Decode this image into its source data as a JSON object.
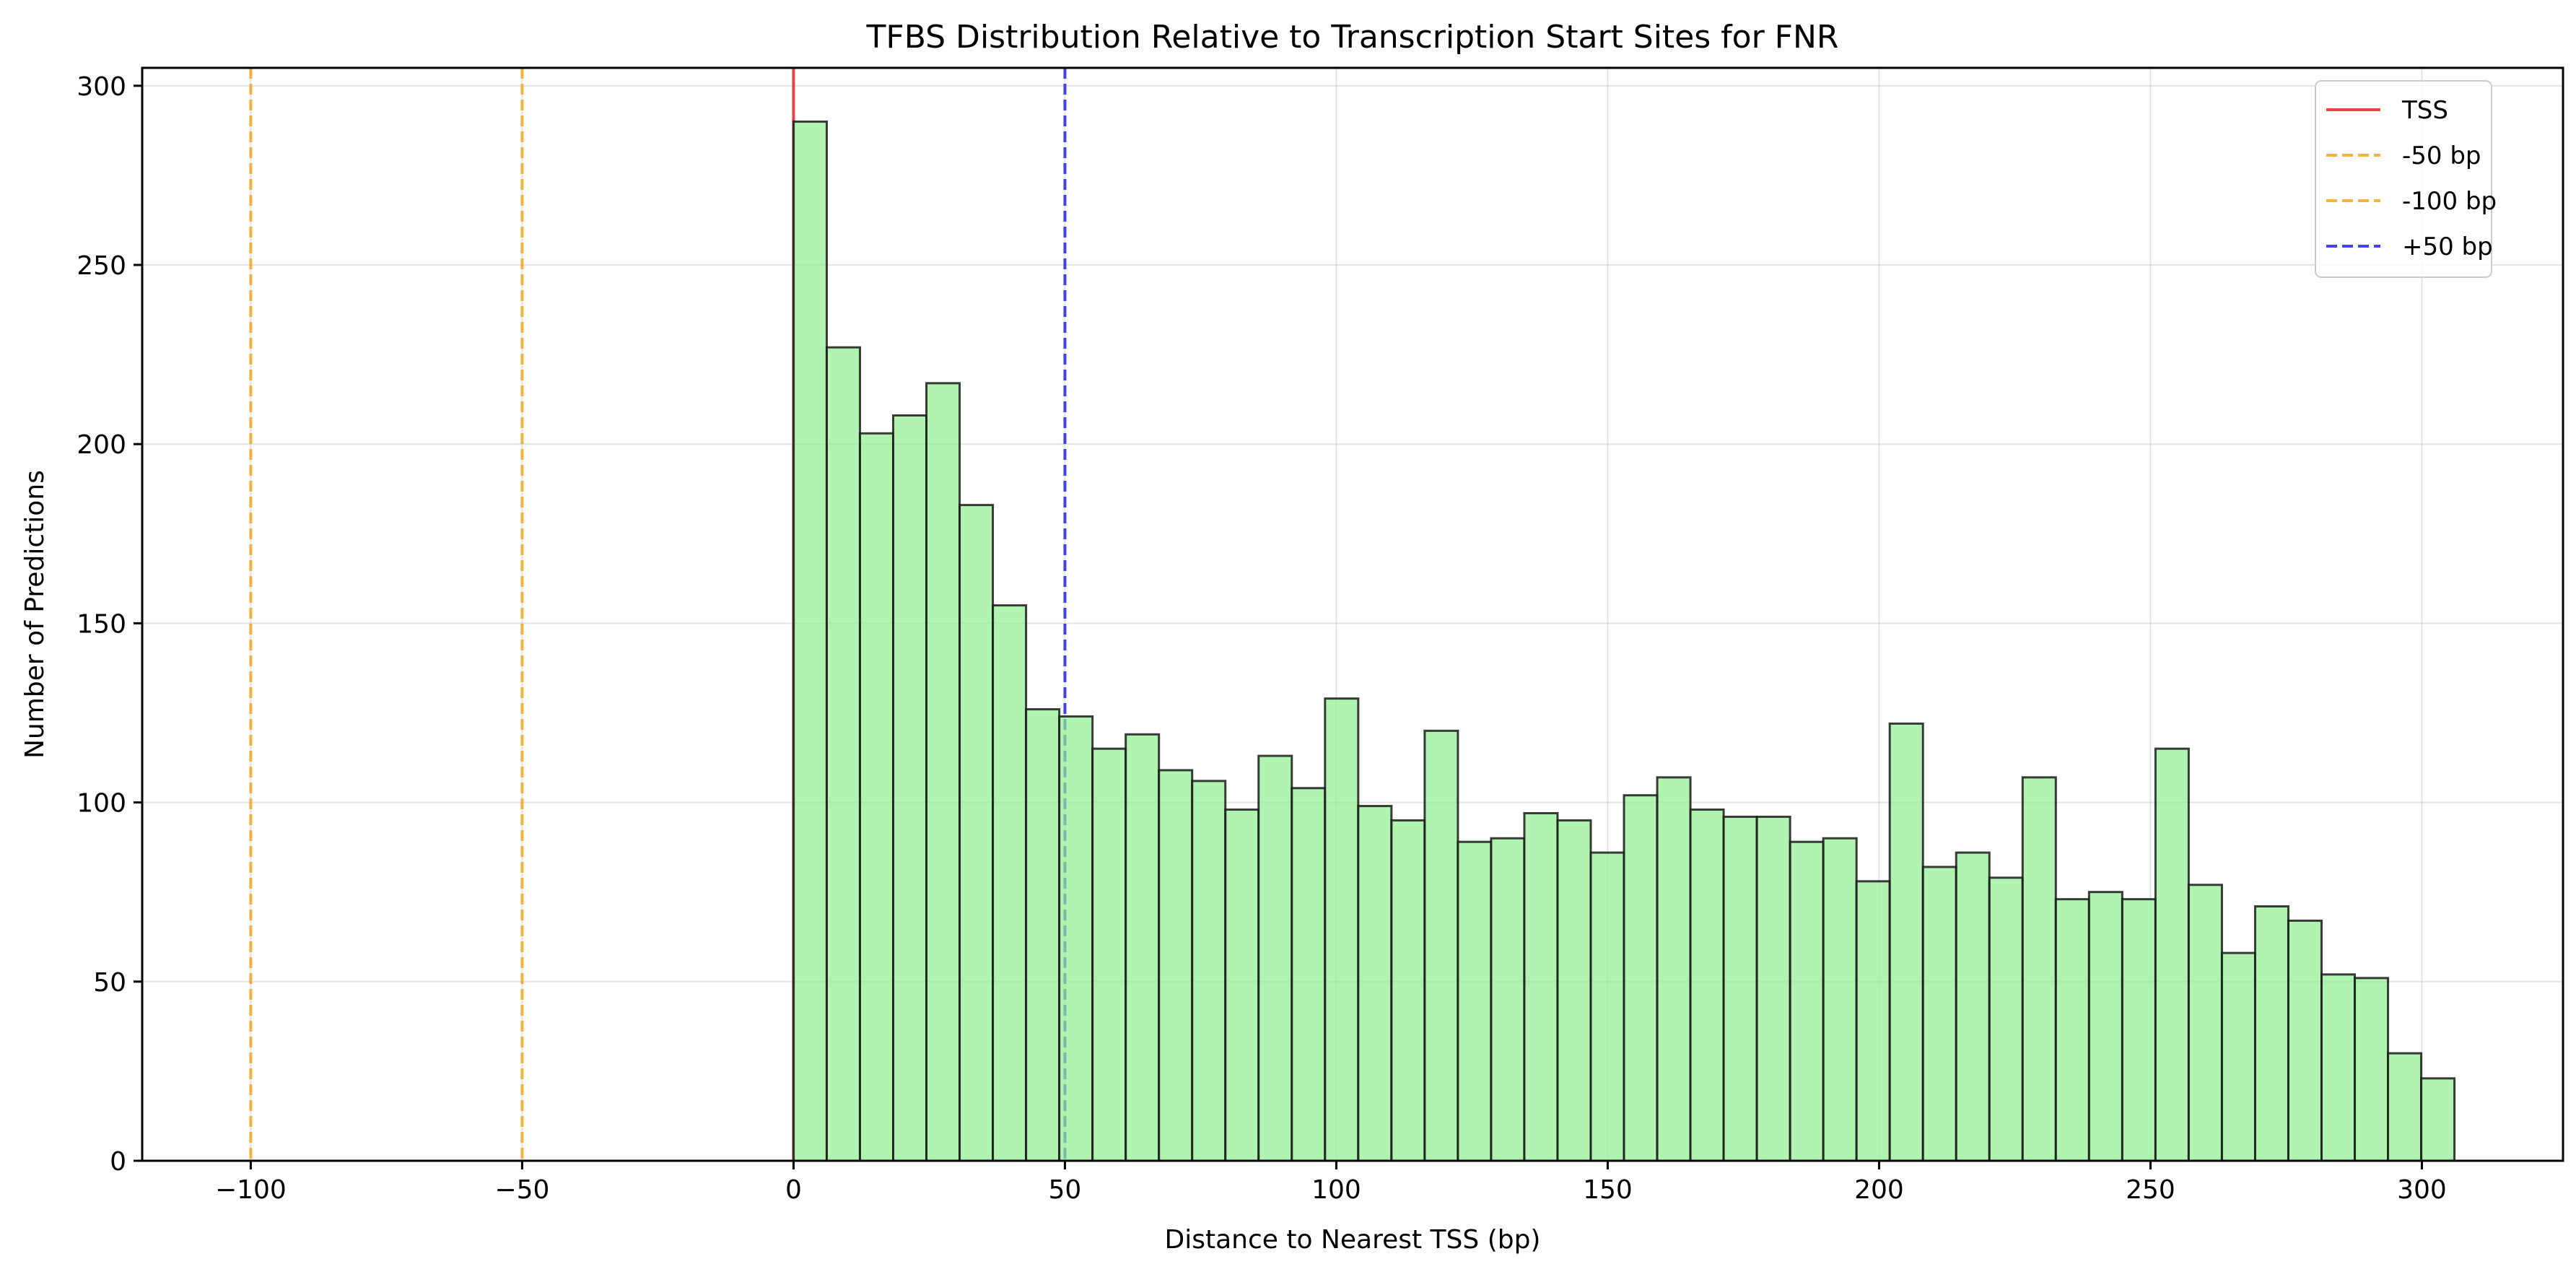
{
  "chart_data": {
    "type": "bar",
    "title": "TFBS Distribution Relative to Transcription Start Sites for FNR",
    "xlabel": "Distance to Nearest TSS (bp)",
    "ylabel": "Number of Predictions",
    "xlim": [
      -120,
      326
    ],
    "ylim": [
      0,
      305
    ],
    "xticks": [
      -100,
      -50,
      0,
      50,
      100,
      150,
      200,
      250,
      300
    ],
    "xtick_labels": [
      "−100",
      "−50",
      "0",
      "50",
      "100",
      "150",
      "200",
      "250",
      "300"
    ],
    "yticks": [
      0,
      50,
      100,
      150,
      200,
      250,
      300
    ],
    "ytick_labels": [
      "0",
      "50",
      "100",
      "150",
      "200",
      "250",
      "300"
    ],
    "grid": true,
    "legend_position": "top-right",
    "bin_start": 0,
    "bin_width": 6.12,
    "bar_color": "#90EE90",
    "bar_edge_color": "#1a1a1a",
    "values": [
      290,
      227,
      203,
      208,
      217,
      183,
      155,
      126,
      124,
      115,
      119,
      109,
      106,
      98,
      113,
      104,
      129,
      99,
      95,
      120,
      89,
      90,
      97,
      95,
      86,
      102,
      107,
      98,
      96,
      96,
      89,
      90,
      78,
      122,
      82,
      86,
      79,
      107,
      73,
      75,
      73,
      115,
      77,
      58,
      71,
      67,
      52,
      51,
      30,
      23
    ],
    "reference_lines": [
      {
        "name": "TSS",
        "x": 0,
        "color": "#e82424",
        "dashed": false
      },
      {
        "name": "-50 bp",
        "x": -50,
        "color": "#f5a623",
        "dashed": true
      },
      {
        "name": "-100 bp",
        "x": -100,
        "color": "#f5a623",
        "dashed": true
      },
      {
        "name": "+50 bp",
        "x": 50,
        "color": "#2323e8",
        "dashed": true
      }
    ]
  }
}
